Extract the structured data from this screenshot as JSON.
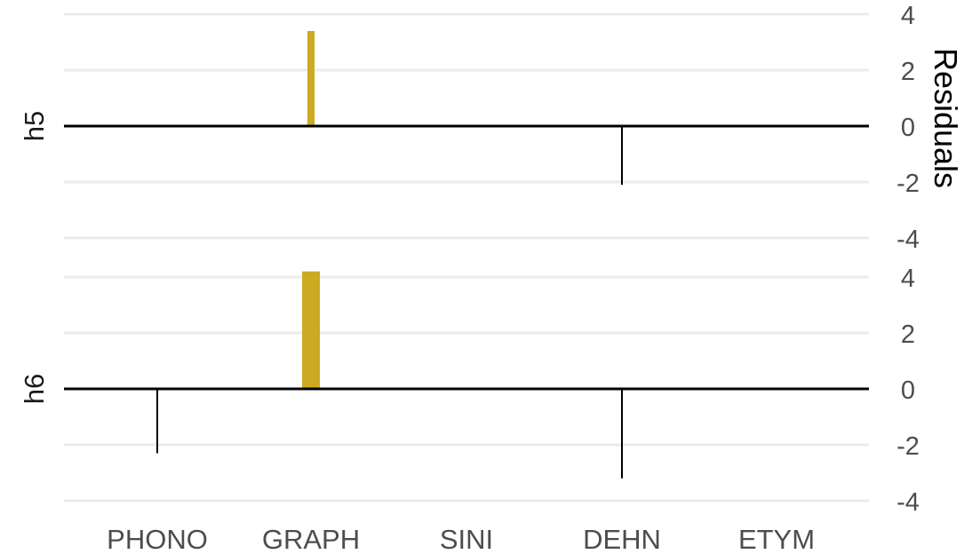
{
  "chart_data": {
    "type": "bar",
    "categories": [
      "PHONO",
      "GRAPH",
      "SINI",
      "DEHN",
      "ETYM"
    ],
    "ylabel": "Residuals",
    "xlabel": "",
    "ylim": [
      -4.5,
      4.2
    ],
    "yticks": [
      -4,
      -2,
      0,
      2,
      4
    ],
    "grid": true,
    "y_axis_position": "right",
    "colors": {
      "positive": "#ccaa22",
      "negative": "#000000",
      "grid": "#ebebeb"
    },
    "panels": [
      {
        "label": "h5",
        "values": [
          0.0,
          3.4,
          0.0,
          -2.1,
          0.0
        ]
      },
      {
        "label": "h6",
        "values": [
          -2.3,
          4.2,
          0.0,
          -3.2,
          0.0
        ]
      }
    ]
  }
}
